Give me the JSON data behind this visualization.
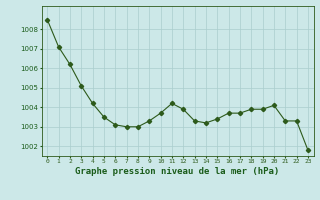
{
  "x": [
    0,
    1,
    2,
    3,
    4,
    5,
    6,
    7,
    8,
    9,
    10,
    11,
    12,
    13,
    14,
    15,
    16,
    17,
    18,
    19,
    20,
    21,
    22,
    23
  ],
  "y": [
    1008.5,
    1007.1,
    1006.2,
    1005.1,
    1004.2,
    1003.5,
    1003.1,
    1003.0,
    1003.0,
    1003.3,
    1003.7,
    1004.2,
    1003.9,
    1003.3,
    1003.2,
    1003.4,
    1003.7,
    1003.7,
    1003.9,
    1003.9,
    1004.1,
    1003.3,
    1003.3,
    1001.8
  ],
  "line_color": "#2d5a1b",
  "marker": "D",
  "marker_size": 2.2,
  "bg_color": "#cce8e8",
  "grid_color": "#aacece",
  "title": "Graphe pression niveau de la mer (hPa)",
  "title_color": "#1a5c1a",
  "title_fontsize": 6.5,
  "tick_label_color": "#1a5c1a",
  "ylim": [
    1001.5,
    1009.2
  ],
  "yticks": [
    1002,
    1003,
    1004,
    1005,
    1006,
    1007,
    1008
  ],
  "xtick_labels": [
    "0",
    "1",
    "2",
    "3",
    "4",
    "5",
    "6",
    "7",
    "8",
    "9",
    "10",
    "11",
    "12",
    "13",
    "14",
    "15",
    "16",
    "17",
    "18",
    "19",
    "20",
    "21",
    "22",
    "23"
  ],
  "spine_color": "#2d5a1b",
  "tick_color": "#2d5a1b"
}
